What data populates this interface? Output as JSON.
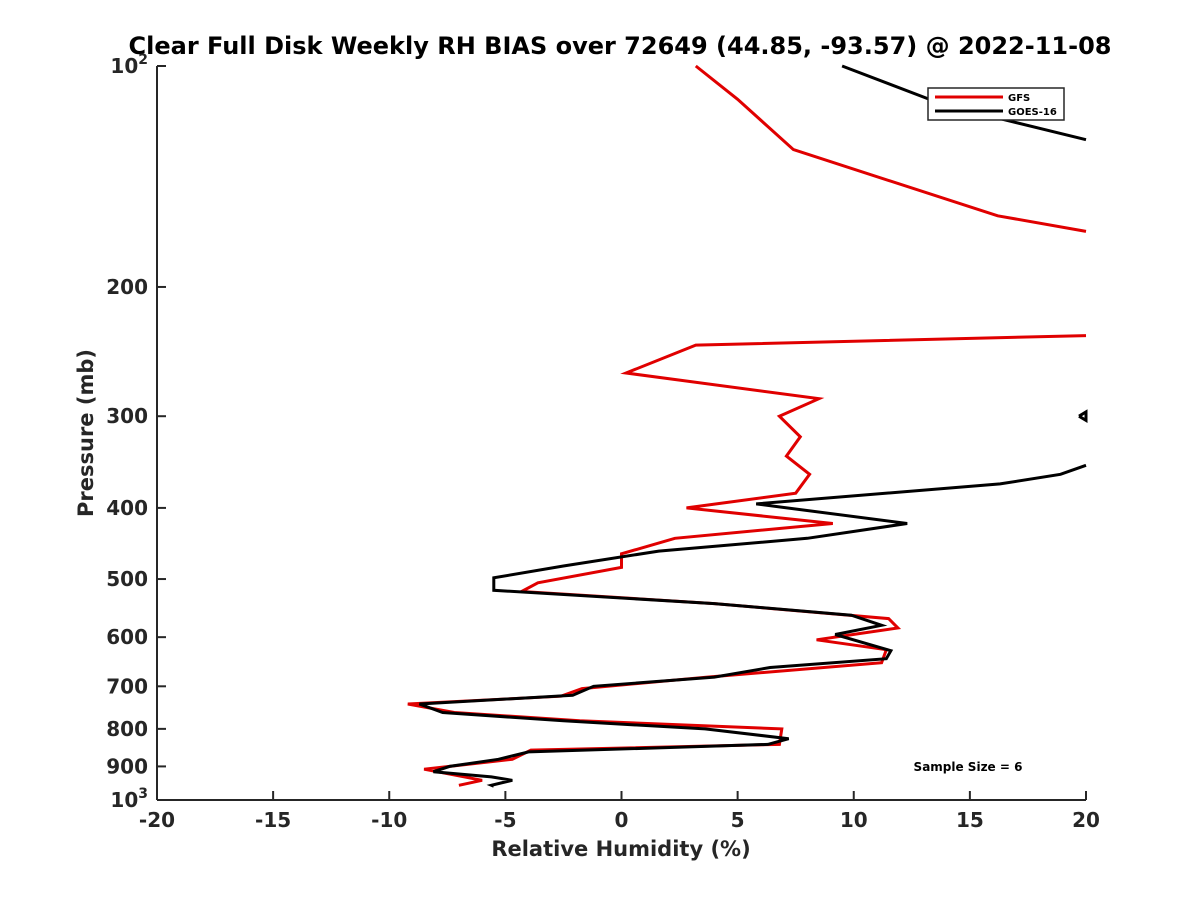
{
  "chart_data": {
    "type": "line",
    "title": "Clear Full Disk Weekly RH BIAS over 72649 (44.85, -93.57) @ 2022-11-08",
    "xlabel": "Relative Humidity (%)",
    "ylabel": "Pressure (mb)",
    "xlim": [
      -20,
      20
    ],
    "ylim": [
      100,
      1000
    ],
    "yscale": "log",
    "y_reversed": true,
    "grid": false,
    "legend_position": "top-right",
    "x_ticks": [
      "-20",
      "-15",
      "-10",
      "-5",
      "0",
      "5",
      "10",
      "15",
      "20"
    ],
    "y_ticks": [
      {
        "value": 100,
        "label": "10",
        "sup": "2"
      },
      {
        "value": 200,
        "label": "200",
        "sup": ""
      },
      {
        "value": 300,
        "label": "300",
        "sup": ""
      },
      {
        "value": 400,
        "label": "400",
        "sup": ""
      },
      {
        "value": 500,
        "label": "500",
        "sup": ""
      },
      {
        "value": 600,
        "label": "600",
        "sup": ""
      },
      {
        "value": 700,
        "label": "700",
        "sup": ""
      },
      {
        "value": 800,
        "label": "800",
        "sup": ""
      },
      {
        "value": 900,
        "label": "900",
        "sup": ""
      },
      {
        "value": 1000,
        "label": "10",
        "sup": "3"
      }
    ],
    "annotation": "Sample Size = 6",
    "series": [
      {
        "name": "GFS",
        "color": "#e00000",
        "segments": [
          [
            [
              3.2,
              100
            ],
            [
              5.0,
              111
            ],
            [
              7.4,
              130
            ],
            [
              16.2,
              160
            ],
            [
              20.0,
              168
            ]
          ],
          [
            [
              20.0,
              233
            ],
            [
              3.2,
              240
            ],
            [
              0.2,
              262
            ],
            [
              8.5,
              284
            ],
            [
              6.8,
              300
            ],
            [
              7.7,
              320
            ],
            [
              7.1,
              340
            ],
            [
              8.1,
              360
            ],
            [
              7.5,
              382
            ],
            [
              2.8,
              400
            ],
            [
              9.1,
              420
            ],
            [
              2.3,
              440
            ],
            [
              0.0,
              462
            ],
            [
              0.0,
              482
            ],
            [
              -3.6,
              506
            ],
            [
              -4.3,
              520
            ],
            [
              4.0,
              540
            ],
            [
              11.5,
              566
            ],
            [
              11.9,
              583
            ],
            [
              8.4,
              605
            ],
            [
              11.4,
              624
            ],
            [
              11.2,
              650
            ],
            [
              3.7,
              680
            ],
            [
              -1.7,
              705
            ],
            [
              -2.6,
              722
            ],
            [
              -9.2,
              740
            ],
            [
              -7.2,
              760
            ],
            [
              -1.8,
              780
            ],
            [
              6.9,
              800
            ],
            [
              6.8,
              840
            ],
            [
              -3.9,
              855
            ],
            [
              -4.7,
              880
            ],
            [
              -8.5,
              908
            ],
            [
              -6.0,
              940
            ],
            [
              -7.0,
              955
            ]
          ]
        ]
      },
      {
        "name": "GOES-16",
        "color": "#000000",
        "segments": [
          [
            [
              9.5,
              100
            ],
            [
              13.9,
              113
            ],
            [
              20.0,
              126
            ]
          ],
          [
            [
              19.7,
              300
            ],
            [
              20.0,
              296
            ],
            [
              20.0,
              304
            ],
            [
              19.7,
              300
            ]
          ],
          [
            [
              20.0,
              350
            ],
            [
              18.9,
              360
            ],
            [
              16.3,
              371
            ],
            [
              5.8,
              395
            ],
            [
              12.3,
              420
            ],
            [
              8.0,
              440
            ],
            [
              1.6,
              458
            ],
            [
              -2.5,
              480
            ],
            [
              -5.5,
              498
            ],
            [
              -5.5,
              518
            ],
            [
              4.0,
              540
            ],
            [
              9.9,
              560
            ],
            [
              11.2,
              578
            ],
            [
              9.2,
              595
            ],
            [
              11.6,
              626
            ],
            [
              11.4,
              642
            ],
            [
              6.4,
              660
            ],
            [
              4.0,
              680
            ],
            [
              -1.2,
              700
            ],
            [
              -2.1,
              720
            ],
            [
              -8.7,
              740
            ],
            [
              -7.7,
              760
            ],
            [
              -2.5,
              780
            ],
            [
              3.6,
              800
            ],
            [
              7.2,
              825
            ],
            [
              6.3,
              840
            ],
            [
              -4.0,
              860
            ],
            [
              -5.3,
              880
            ],
            [
              -7.4,
              900
            ],
            [
              -8.1,
              915
            ],
            [
              -5.6,
              930
            ],
            [
              -4.7,
              940
            ],
            [
              -5.6,
              955
            ],
            [
              -5.5,
              958
            ]
          ]
        ]
      }
    ]
  }
}
